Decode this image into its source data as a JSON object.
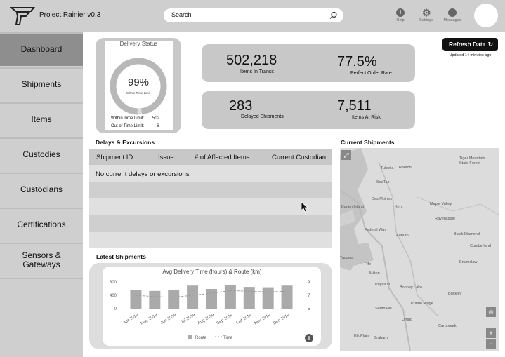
{
  "header": {
    "app_title": "Project Rainier v0.3",
    "search_placeholder": "Search",
    "help_label": "Help",
    "settings_label": "Settings",
    "messages_label": "Messages"
  },
  "sidebar": {
    "items": [
      {
        "label": "Dashboard"
      },
      {
        "label": "Shipments"
      },
      {
        "label": "Items"
      },
      {
        "label": "Custodies"
      },
      {
        "label": "Custodians"
      },
      {
        "label": "Certifications"
      },
      {
        "label": "Sensors &\nGateways"
      }
    ]
  },
  "delivery_status": {
    "title": "Delivery Status",
    "percent": "99%",
    "percent_value": 0.99,
    "subtitle": "Within Time Limit",
    "within_label": "Within Time Limit:",
    "within_value": "502",
    "out_label": "Out of Time Limit:",
    "out_value": "6"
  },
  "kpis": {
    "in_transit_value": "502,218",
    "in_transit_label": "Items In Transit",
    "perfect_value": "77.5%",
    "perfect_label": "Perfect Order Rate",
    "delayed_value": "283",
    "delayed_label": "Delayed Shipments",
    "risk_value": "7,511",
    "risk_label": "Items At Risk"
  },
  "refresh": {
    "label": "Refresh Data",
    "updated": "Updated 14 minutes ago"
  },
  "delays": {
    "title": "Delays & Excursions",
    "columns": [
      "Shipment ID",
      "Issue",
      "# of Affected Items",
      "Current Custodian"
    ],
    "empty_message": "No current delays or excursions"
  },
  "latest": {
    "title": "Latest Shipments"
  },
  "map": {
    "title": "Current Shipments",
    "places": [
      "Tiger Mountain State Forest",
      "Tukwila",
      "Renton",
      "SeaTac",
      "Des Moines",
      "Kent",
      "Maple Valley",
      "Burien Island",
      "Ravensdale",
      "Federal Way",
      "Auburn",
      "Black Diamond",
      "Cumberland",
      "Tacoma",
      "Fife",
      "Enumclaw",
      "Milton",
      "Puyallup",
      "Bonney Lake",
      "Buckley",
      "Prairie Ridge",
      "South Hill",
      "Orting",
      "Carbonado",
      "Elk Plain",
      "Graham"
    ]
  },
  "chart_data": {
    "type": "bar",
    "title": "Avg Delivery Time (hours) & Route (km)",
    "categories": [
      "Apr 2019",
      "May 2019",
      "Jun 2019",
      "Jul 2019",
      "Aug 2019",
      "Sep 2019",
      "Oct 2019",
      "Nov 2019",
      "Dec 2019"
    ],
    "series": [
      {
        "name": "Route",
        "type": "bar",
        "axis": "left",
        "values": [
          560,
          530,
          550,
          690,
          590,
          700,
          650,
          640,
          690
        ]
      },
      {
        "name": "Time",
        "type": "line",
        "axis": "right",
        "values": [
          7.0,
          6.8,
          6.7,
          7.0,
          7.3,
          7.7,
          7.6,
          7.5,
          7.6
        ]
      }
    ],
    "y_left": {
      "ticks": [
        "800",
        "400",
        "0"
      ],
      "lim": [
        0,
        800
      ]
    },
    "y_right": {
      "ticks": [
        "9",
        "7",
        "5"
      ],
      "lim": [
        5,
        9
      ]
    },
    "legend": [
      "Route",
      "Time"
    ],
    "legend_position": "bottom"
  }
}
